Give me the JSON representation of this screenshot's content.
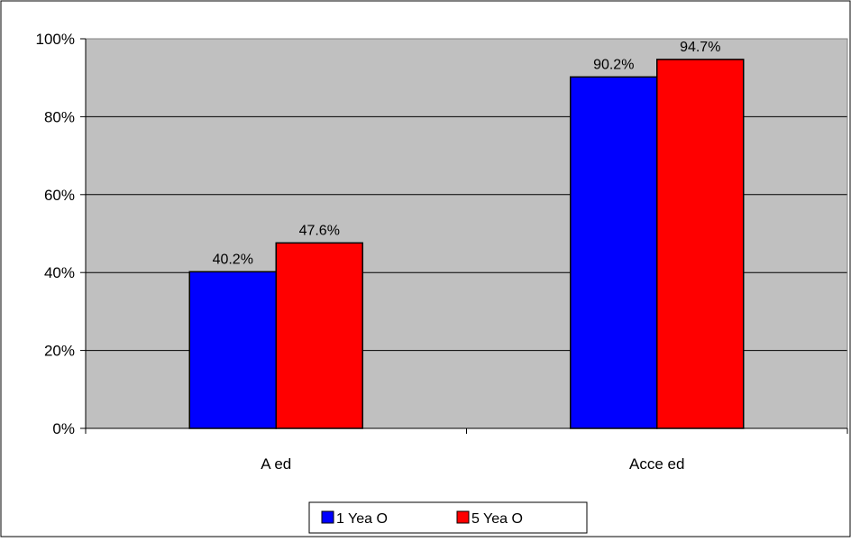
{
  "chart_data": {
    "type": "bar",
    "title": "",
    "xlabel": "",
    "ylabel": "",
    "categories": [
      "A    ed",
      "Acce    ed"
    ],
    "series": [
      {
        "name": "1 Yea   O",
        "color": "#0000FF",
        "values": [
          40.2,
          90.2
        ],
        "labels": [
          "40.2%",
          "90.2%"
        ]
      },
      {
        "name": "5  Yea    O",
        "color": "#FF0000",
        "values": [
          47.6,
          94.7
        ],
        "labels": [
          "47.6%",
          "94.7%"
        ]
      }
    ],
    "ylim": [
      0,
      100
    ],
    "yticks": [
      0,
      20,
      40,
      60,
      80,
      100
    ],
    "ytick_labels": [
      "0%",
      "20%",
      "40%",
      "60%",
      "80%",
      "100%"
    ],
    "grid": true,
    "plot_background": "#C0C0C0",
    "legend_position": "bottom"
  }
}
